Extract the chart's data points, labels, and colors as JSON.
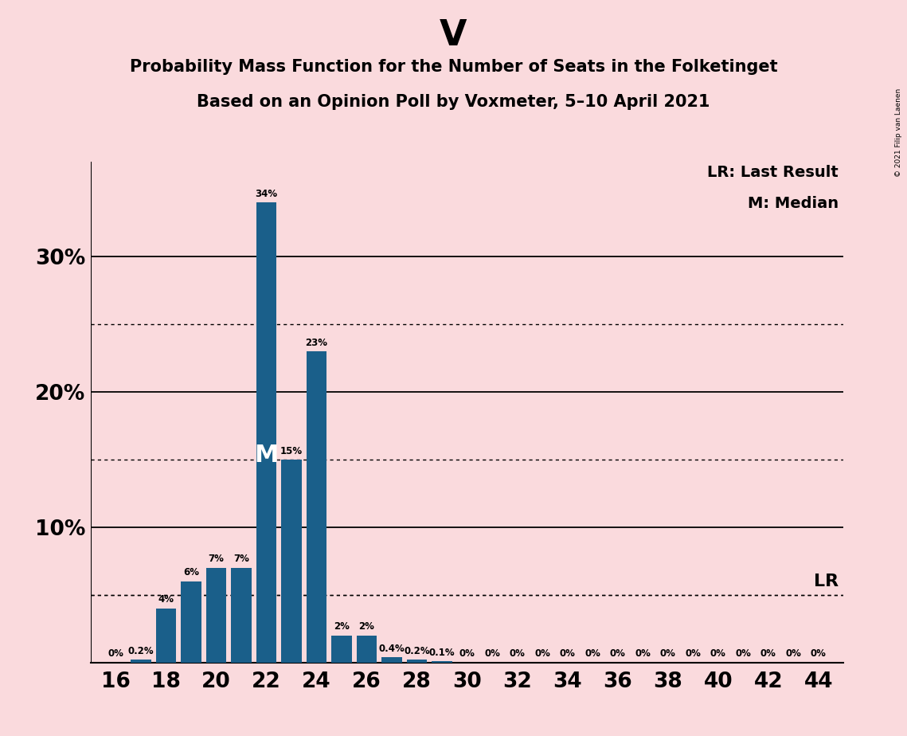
{
  "title_main": "V",
  "title_line1": "Probability Mass Function for the Number of Seats in the Folketinget",
  "title_line2": "Based on an Opinion Poll by Voxmeter, 5–10 April 2021",
  "copyright": "© 2021 Filip van Laenen",
  "seats": [
    16,
    17,
    18,
    19,
    20,
    21,
    22,
    23,
    24,
    25,
    26,
    27,
    28,
    29,
    30,
    31,
    32,
    33,
    34,
    35,
    36,
    37,
    38,
    39,
    40,
    41,
    42,
    43,
    44
  ],
  "probabilities": [
    0.0,
    0.2,
    4.0,
    6.0,
    7.0,
    7.0,
    34.0,
    15.0,
    23.0,
    2.0,
    2.0,
    0.4,
    0.2,
    0.1,
    0.0,
    0.0,
    0.0,
    0.0,
    0.0,
    0.0,
    0.0,
    0.0,
    0.0,
    0.0,
    0.0,
    0.0,
    0.0,
    0.0,
    0.0
  ],
  "bar_color": "#1a5f8a",
  "background_color": "#fadadd",
  "median_seat": 22,
  "last_result_pct": 5.0,
  "ylim": [
    0,
    37
  ],
  "solid_gridlines": [
    10,
    20,
    30
  ],
  "dotted_gridlines": [
    5,
    15,
    25
  ],
  "bar_label_fontsize": 8.5,
  "tick_fontsize": 19,
  "title_main_fontsize": 32,
  "title_sub_fontsize": 15
}
